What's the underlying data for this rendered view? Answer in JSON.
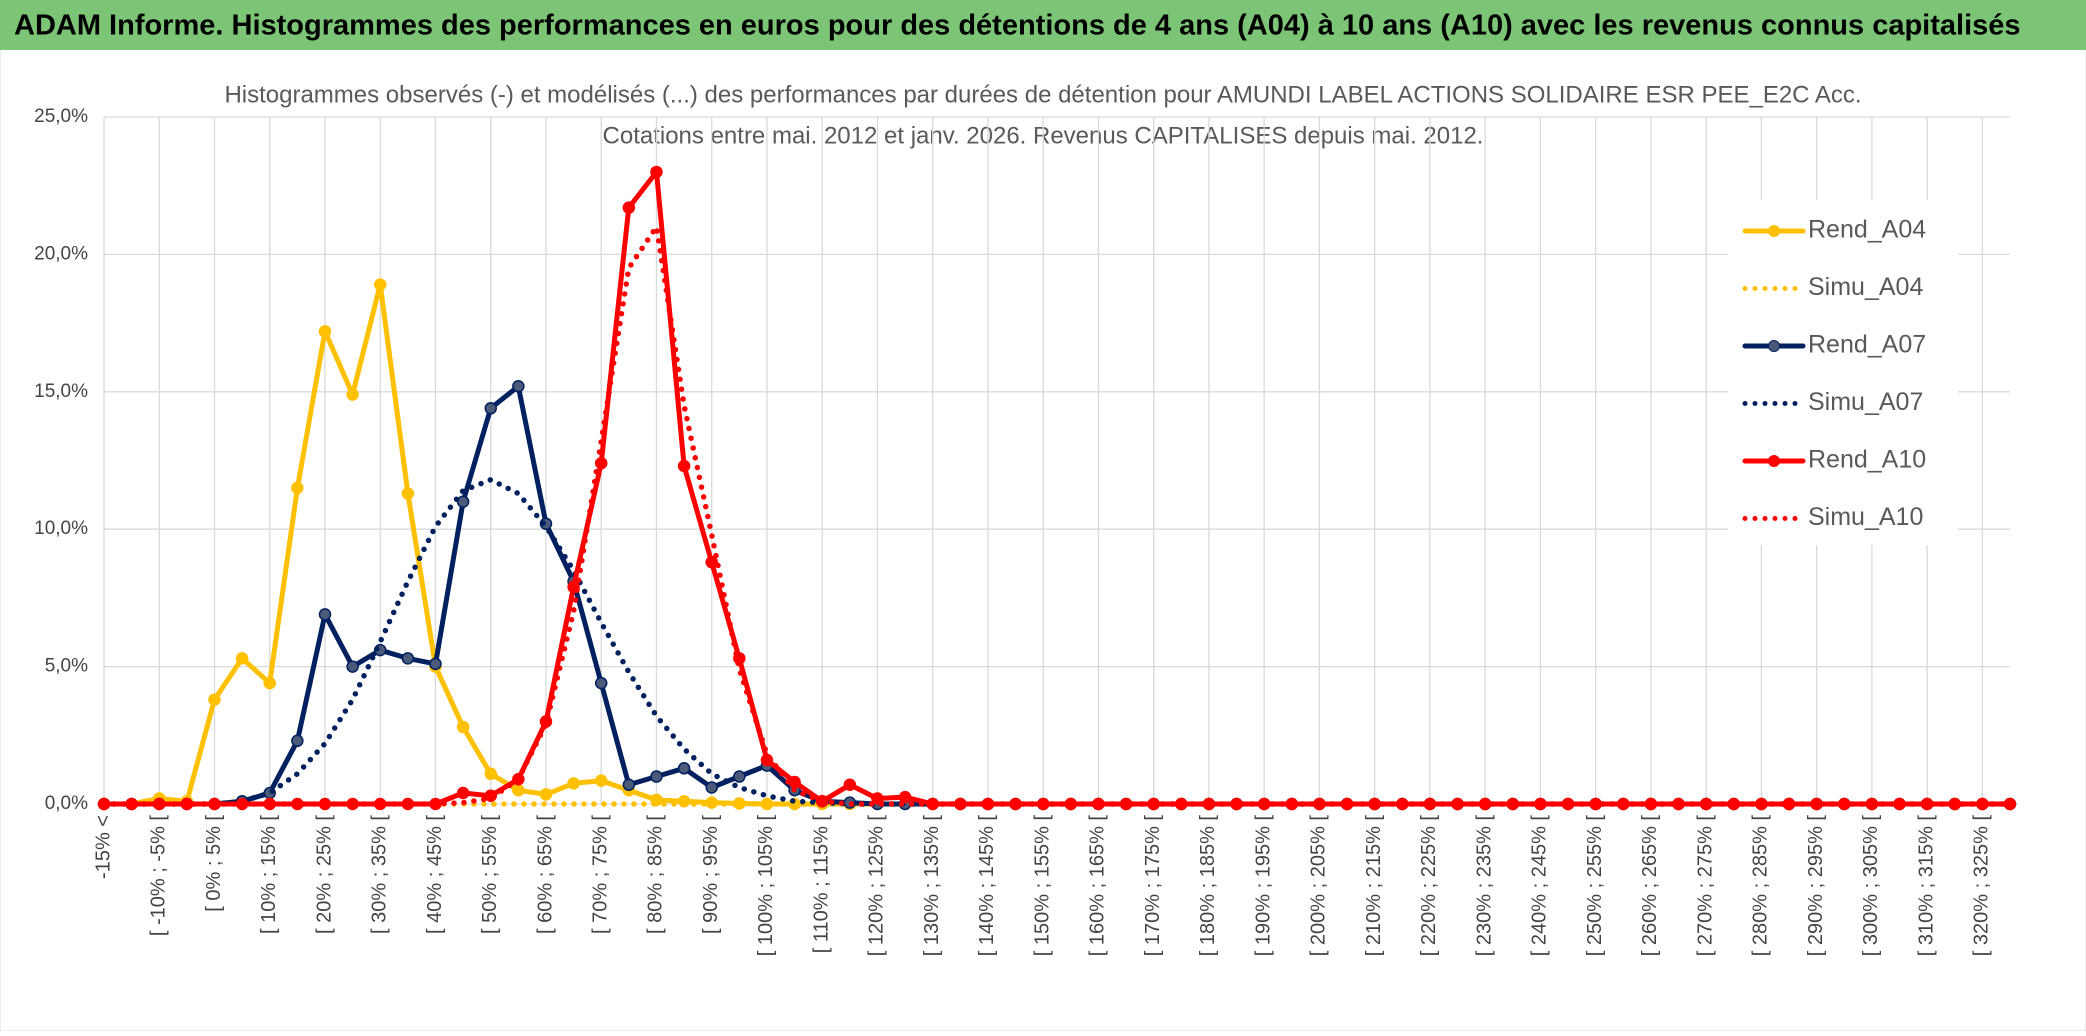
{
  "chart_data": {
    "type": "line",
    "title": "ADAM Informe. Histogrammes des performances en euros pour des détentions de 4 ans (A04) à 10 ans (A10) avec les revenus connus capitalisés",
    "subtitle": [
      "Histogrammes observés (-) et modélisés (...) des performances par durées de détention pour AMUNDI LABEL ACTIONS SOLIDAIRE ESR PEE_E2C Acc.",
      "Cotations entre mai. 2012 et janv. 2026. Revenus CAPITALISES depuis mai. 2012."
    ],
    "categories": [
      "-15% <",
      null,
      "[ -10% ; -5% [",
      null,
      "[ 0% ; 5% [",
      null,
      "[ 10% ; 15% [",
      null,
      "[ 20% ; 25% [",
      null,
      "[ 30% ; 35% [",
      null,
      "[ 40% ; 45% [",
      null,
      "[ 50% ; 55% [",
      null,
      "[ 60% ; 65% [",
      null,
      "[ 70% ; 75% [",
      null,
      "[ 80% ; 85% [",
      null,
      "[ 90% ; 95% [",
      null,
      "[ 100% ; 105% [",
      null,
      "[ 110% ; 115% [",
      null,
      "[ 120% ; 125% [",
      null,
      "[ 130% ; 135% [",
      null,
      "[ 140% ; 145% [",
      null,
      "[ 150% ; 155% [",
      null,
      "[ 160% ; 165% [",
      null,
      "[ 170% ; 175% [",
      null,
      "[ 180% ; 185% [",
      null,
      "[ 190% ; 195% [",
      null,
      "[ 200% ; 205% [",
      null,
      "[ 210% ; 215% [",
      null,
      "[ 220% ; 225% [",
      null,
      "[ 230% ; 235% [",
      null,
      "[ 240% ; 245% [",
      null,
      "[ 250% ; 255% [",
      null,
      "[ 260% ; 265% [",
      null,
      "[ 270% ; 275% [",
      null,
      "[ 280% ; 285% [",
      null,
      "[ 290% ; 295% [",
      null,
      "[ 300% ; 305% [",
      null,
      "[ 310% ; 315% [",
      null,
      "[ 320% ; 325% [",
      null
    ],
    "series": [
      {
        "name": "Rend_A04",
        "color": "#ffc000",
        "style": "solid",
        "values": [
          0,
          0,
          0.2,
          0.1,
          3.8,
          5.3,
          4.4,
          11.5,
          17.2,
          14.9,
          18.9,
          11.3,
          5.0,
          2.8,
          1.1,
          0.5,
          0.35,
          0.75,
          0.85,
          0.5,
          0.15,
          0.1,
          0.05,
          0.02,
          0,
          0,
          0,
          0,
          0,
          0,
          0,
          0,
          0,
          0,
          0,
          0,
          0,
          0,
          0,
          0,
          0,
          0,
          0,
          0,
          0,
          0,
          0,
          0,
          0,
          0,
          0,
          0,
          0,
          0,
          0,
          0,
          0,
          0,
          0,
          0,
          0,
          0,
          0,
          0,
          0,
          0,
          0,
          0,
          0,
          0
        ]
      },
      {
        "name": "Simu_A04",
        "color": "#ffc000",
        "style": "dotted",
        "values": [
          0,
          0,
          0,
          0,
          0,
          0,
          0,
          0,
          0,
          0,
          0,
          0,
          0,
          0,
          0,
          0,
          0,
          0,
          0,
          0,
          0,
          0,
          0,
          0,
          0,
          0,
          0,
          0,
          0,
          0,
          0,
          0,
          0,
          0,
          0,
          0,
          0,
          0,
          0,
          0,
          0,
          0,
          0,
          0,
          0,
          0,
          0,
          0,
          0,
          0,
          0,
          0,
          0,
          0,
          0,
          0,
          0,
          0,
          0,
          0,
          0,
          0,
          0,
          0,
          0,
          0,
          0,
          0,
          0,
          0
        ]
      },
      {
        "name": "Rend_A07",
        "color": "#002060",
        "style": "solid",
        "values": [
          0,
          0,
          0,
          0,
          0,
          0.1,
          0.4,
          2.3,
          6.9,
          5.0,
          5.6,
          5.3,
          5.1,
          11.0,
          14.4,
          15.2,
          10.2,
          8.1,
          4.4,
          0.7,
          1.0,
          1.3,
          0.6,
          1.0,
          1.4,
          0.5,
          0.1,
          0.05,
          0,
          0,
          0,
          0,
          0,
          0,
          0,
          0,
          0,
          0,
          0,
          0,
          0,
          0,
          0,
          0,
          0,
          0,
          0,
          0,
          0,
          0,
          0,
          0,
          0,
          0,
          0,
          0,
          0,
          0,
          0,
          0,
          0,
          0,
          0,
          0,
          0,
          0,
          0,
          0,
          0,
          0
        ]
      },
      {
        "name": "Simu_A07",
        "color": "#002060",
        "style": "dotted",
        "values": [
          0,
          0,
          0,
          0,
          0,
          0.1,
          0.4,
          1.1,
          2.2,
          3.8,
          5.9,
          8.1,
          10.1,
          11.4,
          11.8,
          11.3,
          10.1,
          8.5,
          6.6,
          4.8,
          3.2,
          2.0,
          1.1,
          0.6,
          0.3,
          0.1,
          0.05,
          0,
          0,
          0,
          0,
          0,
          0,
          0,
          0,
          0,
          0,
          0,
          0,
          0,
          0,
          0,
          0,
          0,
          0,
          0,
          0,
          0,
          0,
          0,
          0,
          0,
          0,
          0,
          0,
          0,
          0,
          0,
          0,
          0,
          0,
          0,
          0,
          0,
          0,
          0,
          0,
          0,
          0,
          0
        ]
      },
      {
        "name": "Rend_A10",
        "color": "#ff0000",
        "style": "solid",
        "values": [
          0,
          0,
          0,
          0,
          0,
          0,
          0,
          0,
          0,
          0,
          0,
          0,
          0,
          0.4,
          0.3,
          0.9,
          3.0,
          7.9,
          12.4,
          21.7,
          23.0,
          12.3,
          8.8,
          5.3,
          1.6,
          0.8,
          0.1,
          0.7,
          0.2,
          0.25,
          0,
          0,
          0,
          0,
          0,
          0,
          0,
          0,
          0,
          0,
          0,
          0,
          0,
          0,
          0,
          0,
          0,
          0,
          0,
          0,
          0,
          0,
          0,
          0,
          0,
          0,
          0,
          0,
          0,
          0,
          0,
          0,
          0,
          0,
          0,
          0,
          0,
          0,
          0,
          0
        ]
      },
      {
        "name": "Simu_A10",
        "color": "#ff0000",
        "style": "dotted",
        "values": [
          0,
          0,
          0,
          0,
          0,
          0,
          0,
          0,
          0,
          0,
          0,
          0,
          0,
          0.05,
          0.2,
          0.9,
          2.9,
          7.0,
          13.2,
          19.5,
          21.0,
          14.5,
          9.8,
          4.9,
          1.8,
          0.5,
          0.1,
          0,
          0,
          0,
          0,
          0,
          0,
          0,
          0,
          0,
          0,
          0,
          0,
          0,
          0,
          0,
          0,
          0,
          0,
          0,
          0,
          0,
          0,
          0,
          0,
          0,
          0,
          0,
          0,
          0,
          0,
          0,
          0,
          0,
          0,
          0,
          0,
          0,
          0,
          0,
          0,
          0,
          0,
          0
        ]
      }
    ],
    "ylim": [
      0,
      25
    ],
    "yticks": [
      {
        "value": 0,
        "label": "0,0%"
      },
      {
        "value": 5,
        "label": "5,0%"
      },
      {
        "value": 10,
        "label": "10,0%"
      },
      {
        "value": 15,
        "label": "15,0%"
      },
      {
        "value": 20,
        "label": "20,0%"
      },
      {
        "value": 25,
        "label": "25,0%"
      }
    ],
    "grid": true,
    "legend": "right"
  }
}
